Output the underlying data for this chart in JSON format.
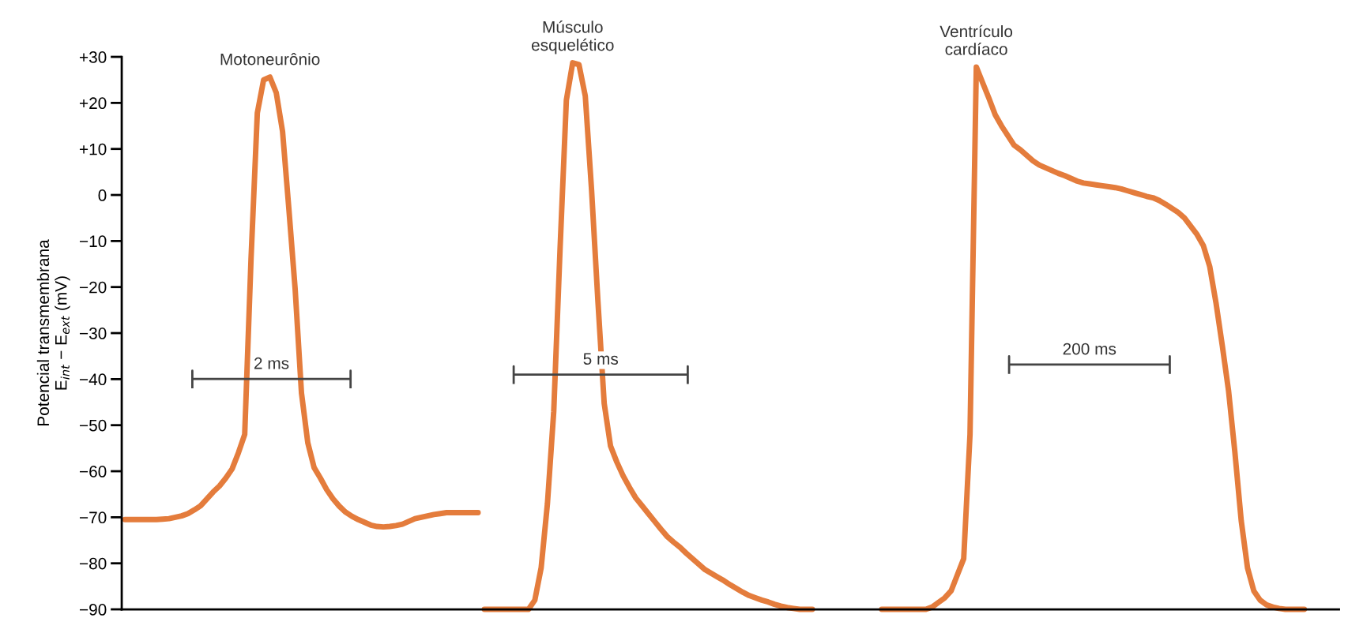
{
  "chart_data": {
    "type": "line",
    "ylabel": "Potencial transmembrana\nE$_{int}$ − E$_{ext}$ (mV)",
    "categories": [
      null,
      null,
      null,
      null,
      null,
      null,
      null,
      null,
      null,
      null,
      null,
      null,
      null,
      null,
      null,
      null,
      null,
      null,
      null,
      null,
      null,
      null,
      null,
      null,
      null,
      null,
      null,
      null,
      null,
      null,
      null,
      null,
      null,
      null,
      null,
      null,
      null,
      null,
      null,
      null,
      null,
      null,
      null,
      null,
      null,
      null,
      null,
      null,
      null,
      null,
      null,
      null,
      null,
      null,
      null,
      null,
      null,
      null,
      null,
      null,
      null,
      null,
      null,
      null,
      null,
      null,
      null,
      null,
      null,
      null,
      null,
      null,
      null,
      null,
      null,
      null,
      null,
      null,
      null,
      null,
      null,
      null,
      null,
      null,
      null,
      null,
      null,
      null,
      null,
      null,
      null,
      null,
      null,
      null,
      null,
      null,
      null,
      null,
      null,
      null,
      null,
      null,
      null,
      null,
      null,
      null,
      null,
      null,
      null,
      null,
      null,
      null,
      null,
      null,
      null,
      null,
      null,
      null,
      null,
      null,
      null,
      null,
      null,
      null,
      null,
      null,
      null,
      null,
      null,
      null,
      null,
      null,
      null,
      null,
      null,
      null,
      null,
      null,
      null,
      null,
      null,
      null,
      null,
      null,
      null,
      null,
      null,
      null,
      null,
      null,
      null,
      null,
      null,
      null,
      null,
      null,
      null,
      null,
      null,
      null,
      null,
      null,
      null,
      null,
      null,
      null,
      null,
      null,
      null,
      null,
      null,
      null,
      null,
      null,
      null,
      null,
      null,
      null,
      null,
      null,
      null,
      null,
      null,
      null,
      null,
      null,
      null,
      null,
      null,
      null,
      null,
      null,
      null
    ],
    "series": [
      {
        "name": "Motoneurônio",
        "color": "#e47c3c",
        "values": [
          -70.5,
          -70.5,
          -70.5,
          -70.5,
          -70.5,
          -70.5,
          -70.4,
          -70.3,
          -70,
          -69.7,
          -69.2,
          -68.4,
          -67.5,
          -66,
          -64.5,
          -63.2,
          -61.5,
          -59.5,
          -56,
          -52,
          -14,
          17.8,
          25,
          25.6,
          22.2,
          13.8,
          -3,
          -20.5,
          -43,
          -53.8,
          -59.2,
          -61.5,
          -64,
          -66,
          -67.6,
          -68.9,
          -69.8,
          -70.5,
          -71.1,
          -71.7,
          -72,
          -72.1,
          -72,
          -71.8,
          -71.5,
          -70.9,
          -70.3,
          -70,
          -69.7,
          -69.4,
          -69.2,
          -69,
          -69,
          -69,
          -69,
          -69,
          -69,
          null,
          null,
          null,
          null,
          null,
          null,
          null,
          null,
          null,
          null,
          null,
          null,
          null,
          null,
          null,
          null,
          null,
          null,
          null,
          null,
          null,
          null,
          null,
          null,
          null,
          null,
          null,
          null,
          null,
          null,
          null,
          null,
          null,
          null,
          null,
          null,
          null,
          null,
          null,
          null,
          null,
          null,
          null,
          null,
          null,
          null,
          null,
          null,
          null,
          null,
          null,
          null,
          null,
          null,
          null,
          null,
          null,
          null,
          null,
          null,
          null,
          null,
          null,
          null,
          null,
          null,
          null,
          null,
          null,
          null,
          null,
          null,
          null,
          null,
          null,
          null,
          null,
          null,
          null,
          null,
          null,
          null,
          null,
          null,
          null,
          null,
          null,
          null,
          null,
          null,
          null,
          null,
          null,
          null,
          null,
          null,
          null,
          null,
          null,
          null,
          null,
          null,
          null,
          null,
          null,
          null,
          null,
          null,
          null,
          null,
          null,
          null,
          null,
          null,
          null,
          null,
          null,
          null,
          null,
          null,
          null,
          null,
          null,
          null,
          null,
          null,
          null,
          null,
          null,
          null,
          null,
          null,
          null,
          null,
          null,
          null
        ]
      },
      {
        "name": "Músculo\nesquelético",
        "color": "#e47c3c",
        "values": [
          null,
          null,
          null,
          null,
          null,
          null,
          null,
          null,
          null,
          null,
          null,
          null,
          null,
          null,
          null,
          null,
          null,
          null,
          null,
          null,
          null,
          null,
          null,
          null,
          null,
          null,
          null,
          null,
          null,
          null,
          null,
          null,
          null,
          null,
          null,
          null,
          null,
          null,
          null,
          null,
          null,
          null,
          null,
          null,
          null,
          null,
          null,
          null,
          null,
          null,
          null,
          null,
          null,
          null,
          null,
          null,
          null,
          -90,
          -90,
          -90,
          -90,
          -90,
          -90,
          -90,
          -90,
          -88,
          -81,
          -67,
          -47,
          -11.7,
          20.6,
          28.7,
          28.3,
          21.5,
          1,
          -23,
          -45.3,
          -54.5,
          -58,
          -61,
          -63.5,
          -65.8,
          -67.5,
          -69.2,
          -70.9,
          -72.6,
          -74.2,
          -75.4,
          -76.5,
          -77.8,
          -79,
          -80.2,
          -81.4,
          -82.2,
          -83,
          -83.8,
          -84.7,
          -85.5,
          -86.3,
          -87,
          -87.5,
          -88,
          -88.4,
          -88.9,
          -89.3,
          -89.6,
          -89.8,
          -90,
          -90,
          -90,
          null,
          null,
          null,
          null,
          null,
          null,
          null,
          null,
          null,
          null,
          null,
          null,
          null,
          null,
          null,
          null,
          null,
          null,
          null,
          null,
          null,
          null,
          null,
          null,
          null,
          null,
          null,
          null,
          null,
          null,
          null,
          null,
          null,
          null,
          null,
          null,
          null,
          null,
          null,
          null,
          null,
          null,
          null,
          null,
          null,
          null,
          null,
          null,
          null,
          null,
          null,
          null,
          null,
          null,
          null,
          null,
          null,
          null,
          null,
          null,
          null,
          null,
          null,
          null,
          null,
          null,
          null,
          null,
          null,
          null,
          null,
          null,
          null,
          null,
          null,
          null,
          null,
          null,
          null,
          null,
          null,
          null,
          null
        ]
      },
      {
        "name": "Ventrículo\ncardíaco",
        "color": "#e47c3c",
        "values": [
          null,
          null,
          null,
          null,
          null,
          null,
          null,
          null,
          null,
          null,
          null,
          null,
          null,
          null,
          null,
          null,
          null,
          null,
          null,
          null,
          null,
          null,
          null,
          null,
          null,
          null,
          null,
          null,
          null,
          null,
          null,
          null,
          null,
          null,
          null,
          null,
          null,
          null,
          null,
          null,
          null,
          null,
          null,
          null,
          null,
          null,
          null,
          null,
          null,
          null,
          null,
          null,
          null,
          null,
          null,
          null,
          null,
          null,
          null,
          null,
          null,
          null,
          null,
          null,
          null,
          null,
          null,
          null,
          null,
          null,
          null,
          null,
          null,
          null,
          null,
          null,
          null,
          null,
          null,
          null,
          null,
          null,
          null,
          null,
          null,
          null,
          null,
          null,
          null,
          null,
          null,
          null,
          null,
          null,
          null,
          null,
          null,
          null,
          null,
          null,
          null,
          null,
          null,
          null,
          null,
          null,
          null,
          null,
          null,
          null,
          null,
          null,
          null,
          null,
          null,
          null,
          null,
          null,
          null,
          null,
          -90,
          -90,
          -90,
          -90,
          -90,
          -90,
          -90,
          -90,
          -89.5,
          -88.5,
          -87.5,
          -86,
          -82.5,
          -79,
          -52,
          27.8,
          24.4,
          21,
          17.4,
          15,
          12.9,
          10.8,
          9.8,
          8.6,
          7.4,
          6.5,
          5.9,
          5.3,
          4.7,
          4.2,
          3.6,
          3,
          2.6,
          2.4,
          2.2,
          2,
          1.8,
          1.6,
          1.3,
          0.9,
          0.5,
          0.1,
          -0.3,
          -0.6,
          -1.2,
          -2,
          -2.9,
          -3.8,
          -5,
          -6.8,
          -8.6,
          -11,
          -15.5,
          -23.4,
          -32.7,
          -42.6,
          -55.9,
          -70.7,
          -81,
          -86,
          -88,
          -89,
          -89.5,
          -89.8,
          -90,
          -90,
          -90,
          -90,
          null,
          null,
          null,
          null,
          null
        ]
      }
    ],
    "ylim": [
      -90,
      30
    ],
    "yticks": [
      {
        "value": 30,
        "label": "+30"
      },
      {
        "value": 20,
        "label": "+20"
      },
      {
        "value": 10,
        "label": "+10"
      },
      0,
      {
        "value": -10,
        "label": "−10"
      },
      {
        "value": -20,
        "label": "−20"
      },
      {
        "value": -30,
        "label": "−30"
      },
      {
        "value": -40,
        "label": "−40"
      },
      {
        "value": -50,
        "label": "−50"
      },
      {
        "value": -60,
        "label": "−60"
      },
      {
        "value": -70,
        "label": "−70"
      },
      {
        "value": -80,
        "label": "−80"
      },
      {
        "value": -90,
        "label": "−90"
      }
    ],
    "annotations": [
      "2 ms",
      "5 ms",
      "200 ms"
    ],
    "tick_labels": "y",
    "marker": "none",
    "line_style": "solid"
  }
}
